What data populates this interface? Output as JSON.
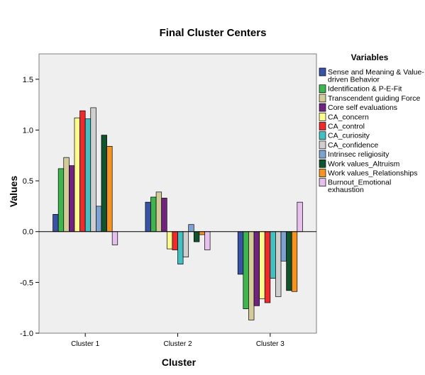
{
  "chart_data": {
    "type": "bar",
    "title": "Final Cluster Centers",
    "xlabel": "Cluster",
    "ylabel": "Values",
    "ylim": [
      -1.0,
      1.75
    ],
    "yticks": [
      -1.0,
      -0.5,
      0.0,
      0.5,
      1.0,
      1.5
    ],
    "ytick_labels": [
      "-1.0",
      "-0.5",
      "0.0",
      "0.5",
      "1.0",
      "1.5"
    ],
    "grid": false,
    "legend_title": "Variables",
    "legend_position": "right",
    "categories": [
      "Cluster 1",
      "Cluster 2",
      "Cluster 3"
    ],
    "series": [
      {
        "name": "Sense and Meaning & Value-driven Behavior",
        "legend_lines": [
          "Sense and Meaning & Value-",
          "driven Behavior"
        ],
        "color": "#3953a4",
        "values": [
          0.17,
          0.29,
          -0.42
        ]
      },
      {
        "name": " Identification & P-E-Fit",
        "legend_lines": [
          " Identification & P-E-Fit"
        ],
        "color": "#3fb550",
        "values": [
          0.62,
          0.34,
          -0.76
        ]
      },
      {
        "name": "Transcendent guiding Force",
        "legend_lines": [
          "Transcendent guiding Force"
        ],
        "color": "#d3cc99",
        "values": [
          0.73,
          0.39,
          -0.87
        ]
      },
      {
        "name": "Core self evaluations",
        "legend_lines": [
          "Core self evaluations"
        ],
        "color": "#71247f",
        "values": [
          0.65,
          0.33,
          -0.73
        ]
      },
      {
        "name": "CA_concern",
        "legend_lines": [
          "CA_concern"
        ],
        "color": "#fdfb8f",
        "values": [
          1.12,
          -0.17,
          -0.66
        ]
      },
      {
        "name": "CA_control",
        "legend_lines": [
          "CA_control"
        ],
        "color": "#ee2a2d",
        "values": [
          1.19,
          -0.18,
          -0.7
        ]
      },
      {
        "name": "CA_curiosity",
        "legend_lines": [
          "CA_curiosity"
        ],
        "color": "#43c1c2",
        "values": [
          1.11,
          -0.32,
          -0.46
        ]
      },
      {
        "name": "CA_confidence",
        "legend_lines": [
          "CA_confidence"
        ],
        "color": "#cfcfcf",
        "values": [
          1.22,
          -0.25,
          -0.64
        ]
      },
      {
        "name": "Intrinsec religiosity",
        "legend_lines": [
          "Intrinsec religiosity"
        ],
        "color": "#7da2d2",
        "values": [
          0.25,
          0.07,
          -0.29
        ]
      },
      {
        "name": "Work values_Altruism",
        "legend_lines": [
          "Work values_Altruism"
        ],
        "color": "#10532c",
        "values": [
          0.95,
          -0.1,
          -0.58
        ]
      },
      {
        "name": "Work values_Relationships",
        "legend_lines": [
          "Work values_Relationships"
        ],
        "color": "#f79421",
        "values": [
          0.84,
          -0.03,
          -0.59
        ]
      },
      {
        "name": "Burnout_Emotional exhaustion",
        "legend_lines": [
          "Burnout_Emotional",
          "exhaustion"
        ],
        "color": "#e6c1ee",
        "values": [
          -0.13,
          -0.18,
          0.29
        ]
      }
    ]
  }
}
